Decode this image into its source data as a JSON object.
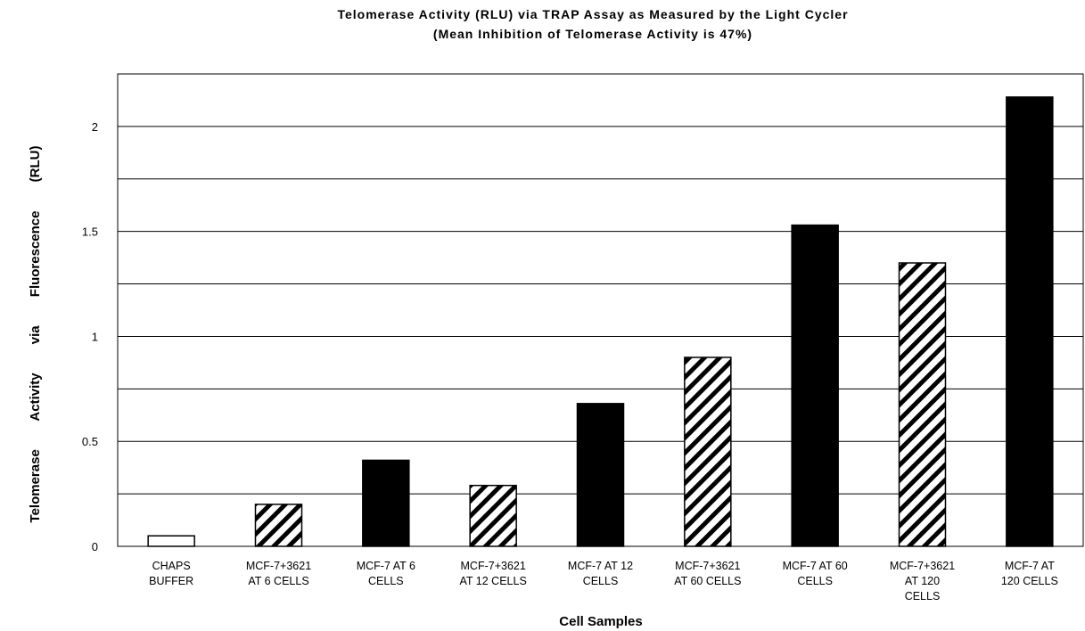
{
  "chart_data": {
    "type": "bar",
    "title": "Telomerase Activity (RLU) via TRAP Assay as Measured by the Light Cycler",
    "subtitle": "(Mean Inhibition of Telomerase Activity is 47%)",
    "x_label": "Cell Samples",
    "y_label": "Telomerase Activity via Fluorescence (RLU)",
    "categories": [
      "CHAPS\nBUFFER",
      "MCF-7+3621\nAT 6 CELLS",
      "MCF-7 AT 6\nCELLS",
      "MCF-7+3621\nAT 12 CELLS",
      "MCF-7 AT 12\nCELLS",
      "MCF-7+3621\nAT 60 CELLS",
      "MCF-7 AT 60\nCELLS",
      "MCF-7+3621\nAT 120\nCELLS",
      "MCF-7 AT\n120 CELLS"
    ],
    "values": [
      0.05,
      0.2,
      0.41,
      0.29,
      0.68,
      0.9,
      1.53,
      1.35,
      2.14
    ],
    "patterns": [
      "open",
      "hatched",
      "solid",
      "hatched",
      "solid",
      "hatched",
      "solid",
      "hatched",
      "solid"
    ],
    "color": "#000000",
    "ylim": [
      0,
      2.25
    ],
    "yticks": [
      0,
      0.5,
      1,
      1.5,
      2
    ],
    "minor_yticks": [
      0.25,
      0.75,
      1.25,
      1.75
    ],
    "grid": true
  }
}
